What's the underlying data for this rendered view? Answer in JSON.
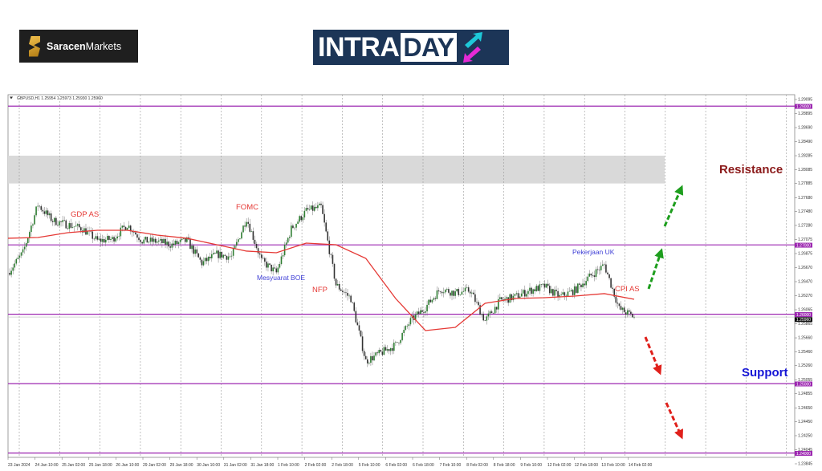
{
  "logos": {
    "saracen": {
      "bold": "Saracen",
      "regular": "Markets"
    },
    "intraday": {
      "part1": "INTRA",
      "part2": "DAY"
    }
  },
  "chart_data": {
    "type": "candlestick",
    "symbol_header": "GBPUSD,H1  1.25954 1.25973 1.25930 1.25960",
    "timeframe": "H1",
    "ylim": [
      1.23845,
      1.29095
    ],
    "y_ticks": [
      "1.29095",
      "1.28895",
      "1.28690",
      "1.28490",
      "1.28285",
      "1.28085",
      "1.27885",
      "1.27680",
      "1.27480",
      "1.27280",
      "1.27075",
      "1.26875",
      "1.26670",
      "1.26470",
      "1.26270",
      "1.26065",
      "1.25865",
      "1.25660",
      "1.25460",
      "1.25260",
      "1.25055",
      "1.24855",
      "1.24650",
      "1.24450",
      "1.24250",
      "1.24045",
      "1.23845"
    ],
    "x_ticks": [
      "23 Jan 2024",
      "24 Jan 10:00",
      "25 Jan 02:00",
      "25 Jan 18:00",
      "26 Jan 10:00",
      "29 Jan 02:00",
      "29 Jan 18:00",
      "30 Jan 10:00",
      "31 Jan 02:00",
      "31 Jan 18:00",
      "1 Feb 10:00",
      "2 Feb 02:00",
      "2 Feb 18:00",
      "5 Feb 10:00",
      "6 Feb 02:00",
      "6 Feb 18:00",
      "7 Feb 10:00",
      "8 Feb 02:00",
      "8 Feb 18:00",
      "9 Feb 10:00",
      "12 Feb 02:00",
      "12 Feb 18:00",
      "13 Feb 10:00",
      "14 Feb 02:00"
    ],
    "grid": "vertical dotted",
    "price_path": [
      1.26597,
      1.26886,
      1.2758,
      1.27349,
      1.27291,
      1.27233,
      1.2706,
      1.27083,
      1.27291,
      1.2706,
      1.27048,
      1.27002,
      1.2706,
      1.26736,
      1.26863,
      1.26829,
      1.27384,
      1.26771,
      1.26597,
      1.27233,
      1.27488,
      1.27546,
      1.26424,
      1.26227,
      1.25325,
      1.25441,
      1.25557,
      1.25904,
      1.261,
      1.26366,
      1.26308,
      1.26343,
      1.25904,
      1.26193,
      1.2625,
      1.26343,
      1.26401,
      1.2625,
      1.26343,
      1.26539,
      1.26713,
      1.26077,
      1.25961
    ],
    "moving_average": [
      1.27095,
      1.27106,
      1.27175,
      1.2721,
      1.2721,
      1.27141,
      1.27095,
      1.27002,
      1.2691,
      1.26886,
      1.27025,
      1.27002,
      1.26805,
      1.26227,
      1.25765,
      1.25811,
      1.26158,
      1.26227,
      1.26239,
      1.26262,
      1.26297,
      1.26216
    ],
    "current_price": {
      "value": 1.2596,
      "label": "1.25960"
    },
    "levels": [
      {
        "value": 1.29,
        "label": "1.29000"
      },
      {
        "value": 1.27,
        "label": "1.27000"
      },
      {
        "value": 1.26,
        "label": "1.26000"
      },
      {
        "value": 1.25,
        "label": "1.25000"
      },
      {
        "value": 1.24,
        "label": "1.24000"
      }
    ],
    "resistance_zone": [
      1.27885,
      1.28285
    ],
    "events": [
      {
        "label": "GDP AS",
        "color": "#e53935"
      },
      {
        "label": "FOMC",
        "color": "#e53935"
      },
      {
        "label": "Mesyuarat BOE",
        "color": "#3f3fd6"
      },
      {
        "label": "NFP",
        "color": "#e53935"
      },
      {
        "label": "Pekerjaan UK",
        "color": "#3f3fd6"
      },
      {
        "label": "CPI AS",
        "color": "#e53935"
      }
    ],
    "zone_labels": {
      "resistance": "Resistance",
      "support": "Support"
    },
    "colors": {
      "level": "#9c27b0",
      "ma": "#e53935",
      "bull": "#2e7d32",
      "bear": "#333333",
      "up_arrow": "#1e9e1e",
      "down_arrow": "#e0201b",
      "resistance_text": "#8b1a1a",
      "support_text": "#1515d6"
    }
  }
}
